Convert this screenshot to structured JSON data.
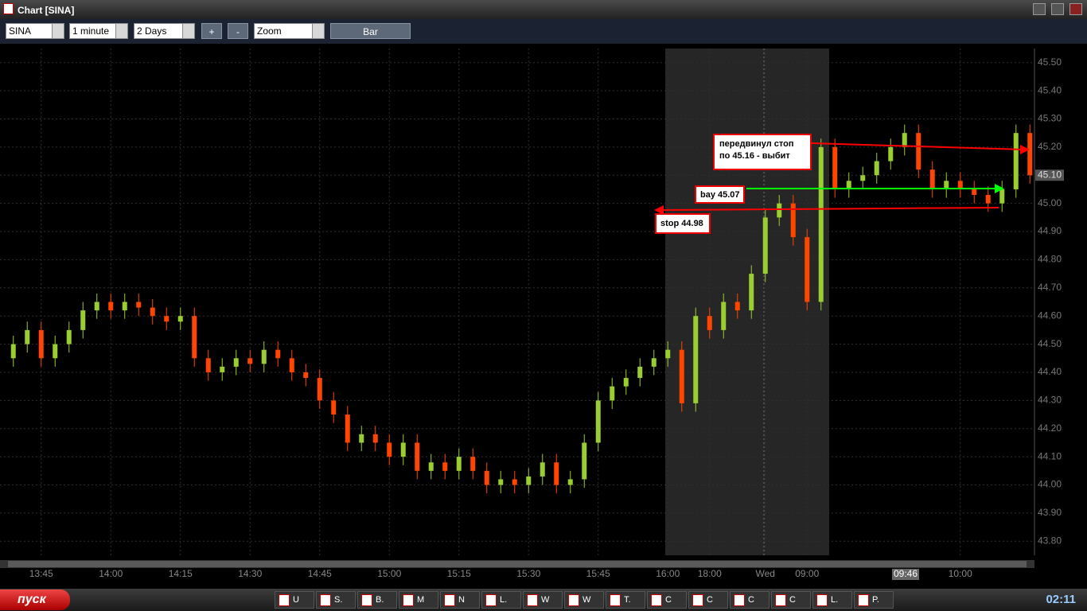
{
  "window": {
    "title": "Chart [SINA]"
  },
  "toolbar": {
    "symbol": "SINA",
    "interval": "1 minute",
    "range": "2 Days",
    "zoom_in": "+",
    "zoom_out": "-",
    "zoom": "Zoom",
    "style": "Bar"
  },
  "chart_data": {
    "type": "candlestick",
    "categories": [
      null,
      null,
      "13:45",
      null,
      null,
      null,
      null,
      "14:00",
      null,
      null,
      null,
      null,
      "14:15",
      null,
      null,
      null,
      null,
      "14:30",
      null,
      null,
      null,
      null,
      "14:45",
      null,
      null,
      null,
      null,
      "15:00",
      null,
      null,
      null,
      null,
      "15:15",
      null,
      null,
      null,
      null,
      "15:30",
      null,
      null,
      null,
      null,
      "15:45",
      null,
      null,
      null,
      null,
      "16:00",
      null,
      null,
      "18:00",
      null,
      null,
      null,
      "Wed",
      null,
      null,
      "09:00",
      null,
      null,
      null,
      null,
      null,
      null,
      null,
      null,
      null,
      null,
      "10:00",
      null,
      null,
      null,
      null,
      null
    ],
    "open": [
      44.45,
      44.5,
      44.55,
      44.45,
      44.5,
      44.55,
      44.62,
      44.65,
      44.62,
      44.65,
      44.63,
      44.6,
      44.58,
      44.6,
      44.45,
      44.4,
      44.42,
      44.45,
      44.43,
      44.48,
      44.45,
      44.4,
      44.38,
      44.3,
      44.25,
      44.15,
      44.18,
      44.15,
      44.1,
      44.15,
      44.05,
      44.08,
      44.05,
      44.1,
      44.05,
      44.0,
      44.02,
      44.0,
      44.03,
      44.08,
      44.0,
      44.02,
      44.15,
      44.3,
      44.35,
      44.38,
      44.42,
      44.45,
      44.48,
      44.29,
      44.6,
      44.55,
      44.65,
      44.62,
      44.75,
      44.95,
      45.0,
      44.88,
      44.65,
      45.2,
      45.05,
      45.08,
      45.1,
      45.15,
      45.2,
      45.25,
      45.12,
      45.05,
      45.08,
      45.05,
      45.03,
      45.0,
      45.05,
      45.25
    ],
    "high": [
      44.53,
      44.58,
      44.58,
      44.53,
      44.58,
      44.65,
      44.68,
      44.68,
      44.68,
      44.68,
      44.66,
      44.63,
      44.63,
      44.63,
      44.48,
      44.45,
      44.48,
      44.48,
      44.51,
      44.51,
      44.48,
      44.43,
      44.41,
      44.33,
      44.28,
      44.21,
      44.21,
      44.18,
      44.18,
      44.18,
      44.11,
      44.11,
      44.13,
      44.13,
      44.08,
      44.05,
      44.05,
      44.06,
      44.11,
      44.11,
      44.05,
      44.18,
      44.33,
      44.38,
      44.41,
      44.45,
      44.48,
      44.51,
      44.51,
      44.63,
      44.63,
      44.68,
      44.68,
      44.78,
      44.98,
      45.03,
      45.03,
      44.91,
      45.23,
      45.23,
      45.11,
      45.13,
      45.18,
      45.23,
      45.28,
      45.28,
      45.15,
      45.11,
      45.11,
      45.08,
      45.06,
      45.08,
      45.28,
      45.28
    ],
    "low": [
      44.42,
      44.47,
      44.42,
      44.42,
      44.47,
      44.52,
      44.59,
      44.59,
      44.59,
      44.6,
      44.57,
      44.55,
      44.55,
      44.42,
      44.37,
      44.37,
      44.39,
      44.4,
      44.4,
      44.42,
      44.37,
      44.35,
      44.27,
      44.22,
      44.12,
      44.12,
      44.12,
      44.07,
      44.07,
      44.02,
      44.02,
      44.02,
      44.02,
      44.02,
      43.97,
      43.97,
      43.97,
      43.97,
      44.0,
      43.97,
      43.97,
      43.99,
      44.12,
      44.27,
      44.32,
      44.35,
      44.39,
      44.42,
      44.26,
      44.26,
      44.52,
      44.52,
      44.59,
      44.59,
      44.72,
      44.92,
      44.85,
      44.62,
      44.62,
      45.02,
      45.02,
      45.05,
      45.07,
      45.12,
      45.17,
      45.09,
      45.02,
      45.02,
      45.02,
      45.0,
      44.97,
      44.97,
      45.02,
      45.07
    ],
    "close": [
      44.5,
      44.55,
      44.45,
      44.5,
      44.55,
      44.62,
      44.65,
      44.62,
      44.65,
      44.63,
      44.6,
      44.58,
      44.6,
      44.45,
      44.4,
      44.42,
      44.45,
      44.43,
      44.48,
      44.45,
      44.4,
      44.38,
      44.3,
      44.25,
      44.15,
      44.18,
      44.15,
      44.1,
      44.15,
      44.05,
      44.08,
      44.05,
      44.1,
      44.05,
      44.0,
      44.02,
      44.0,
      44.03,
      44.08,
      44.0,
      44.02,
      44.15,
      44.3,
      44.35,
      44.38,
      44.42,
      44.45,
      44.48,
      44.29,
      44.6,
      44.55,
      44.65,
      44.62,
      44.75,
      44.95,
      45.0,
      44.88,
      44.65,
      45.2,
      45.05,
      45.08,
      45.1,
      45.15,
      45.2,
      45.25,
      45.12,
      45.05,
      45.08,
      45.05,
      45.03,
      45.0,
      45.05,
      45.25,
      45.1
    ],
    "up_color": "#9acd32",
    "down_color": "#ff4500",
    "ylim": [
      43.75,
      45.55
    ],
    "yticks": [
      {
        "value": 43.8,
        "label": "43.80"
      },
      {
        "value": 43.9,
        "label": "43.90"
      },
      {
        "value": 44.0,
        "label": "44.00"
      },
      {
        "value": 44.1,
        "label": "44.10"
      },
      {
        "value": 44.2,
        "label": "44.20"
      },
      {
        "value": 44.3,
        "label": "44.30"
      },
      {
        "value": 44.4,
        "label": "44.40"
      },
      {
        "value": 44.5,
        "label": "44.50"
      },
      {
        "value": 44.6,
        "label": "44.60"
      },
      {
        "value": 44.7,
        "label": "44.70"
      },
      {
        "value": 44.8,
        "label": "44.80"
      },
      {
        "value": 44.9,
        "label": "44.90"
      },
      {
        "value": 45.0,
        "label": "45.00"
      },
      {
        "value": 45.1,
        "label": "45.10"
      },
      {
        "value": 45.2,
        "label": "45.20"
      },
      {
        "value": 45.3,
        "label": "45.30"
      },
      {
        "value": 45.4,
        "label": "45.40"
      },
      {
        "value": 45.5,
        "label": "45.50"
      }
    ],
    "last_price": {
      "value": 45.1,
      "label": "45.10"
    },
    "grid": true,
    "crosshair_label": "09:46",
    "annotations": [
      "передвинул стоп",
      "по 45.16 - выбит",
      "bay 45.07",
      "stop 44.98"
    ]
  },
  "taskbar": {
    "start": "пуск",
    "items": [
      "U",
      "S.",
      "B.",
      "M",
      "N",
      "L.",
      "W",
      "W",
      "T.",
      "C",
      "C",
      "C",
      "C",
      "L.",
      "P."
    ],
    "clock": "02:11"
  }
}
